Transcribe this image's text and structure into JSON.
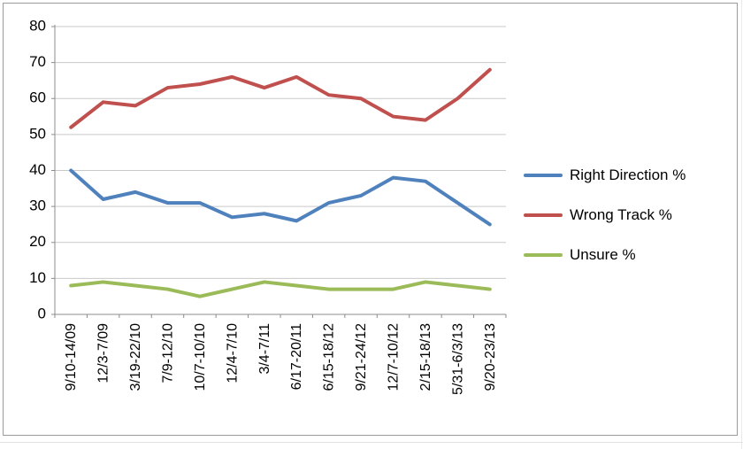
{
  "chart_data": {
    "type": "line",
    "title": "",
    "xlabel": "",
    "ylabel": "",
    "ylim": [
      0,
      80
    ],
    "ytick_step": 10,
    "grid": true,
    "legend_position": "right",
    "categories": [
      "9/10-14/09",
      "12/3-7/09",
      "3/19-22/10",
      "7/9-12/10",
      "10/7-10/10",
      "12/4-7/10",
      "3/4-7/11",
      "6/17-20/11",
      "6/15-18/12",
      "9/21-24/12",
      "12/7-10/12",
      "2/15-18/13",
      "5/31-6/3/13",
      "9/20-23/13"
    ],
    "series": [
      {
        "name": "Right Direction %",
        "color": "#4F81BD",
        "values": [
          40,
          32,
          34,
          31,
          31,
          27,
          28,
          26,
          31,
          33,
          38,
          37,
          31,
          25
        ]
      },
      {
        "name": "Wrong Track %",
        "color": "#C0504D",
        "values": [
          52,
          59,
          58,
          63,
          64,
          66,
          63,
          66,
          61,
          60,
          55,
          54,
          60,
          68
        ]
      },
      {
        "name": "Unsure %",
        "color": "#9BBB59",
        "values": [
          8,
          9,
          8,
          7,
          5,
          7,
          9,
          8,
          7,
          7,
          7,
          9,
          8,
          7
        ]
      }
    ],
    "colors": {
      "gridline": "#c9c9c9",
      "axis": "#8c8c8c",
      "tick_label": "#000000"
    }
  }
}
